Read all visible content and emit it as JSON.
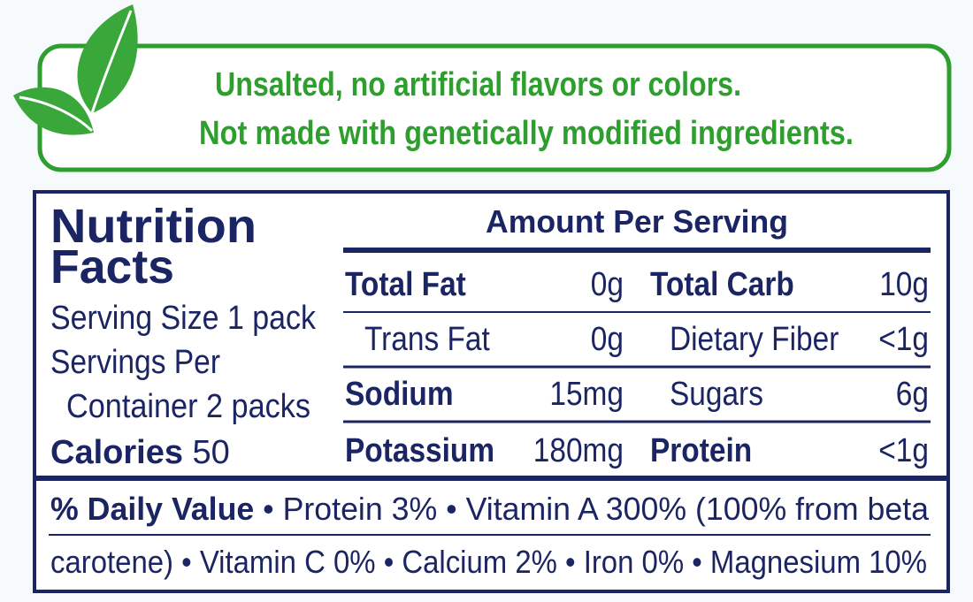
{
  "banner": {
    "lines": [
      "Unsalted, no artificial flavors or colors.",
      "Not made with genetically modified ingredients."
    ]
  },
  "facts": {
    "title_lines": [
      "Nutrition",
      "Facts"
    ],
    "serving_lines": [
      "Serving Size 1 pack",
      "Servings Per",
      "Container 2 packs"
    ],
    "calories": {
      "label": "Calories",
      "value": 50
    },
    "amount_header": "Amount Per Serving",
    "rows": [
      [
        {
          "name": "Total Fat",
          "amount": "0g",
          "bold": true
        },
        {
          "name": "Total Carb",
          "amount": "10g",
          "bold": true
        }
      ],
      [
        {
          "name": "Trans Fat",
          "amount": "0g",
          "indent": true
        },
        {
          "name": "Dietary Fiber",
          "amount": "<1g",
          "indent": true
        }
      ],
      [
        {
          "name": "Sodium",
          "amount": "15mg",
          "bold": true
        },
        {
          "name": "Sugars",
          "amount": "6g",
          "indent": true
        }
      ],
      [
        {
          "name": "Potassium",
          "amount": "180mg",
          "bold": true
        },
        {
          "name": "Protein",
          "amount": "<1g",
          "bold": true
        }
      ]
    ],
    "daily_value": {
      "label": "% Daily Value",
      "lines": [
        [
          "Protein 3%",
          "Vitamin A 300% (100% from beta"
        ],
        [
          "carotene)",
          "Vitamin C 0%",
          "Calcium 2%",
          "Iron 0%",
          "Magnesium 10%"
        ]
      ]
    }
  }
}
